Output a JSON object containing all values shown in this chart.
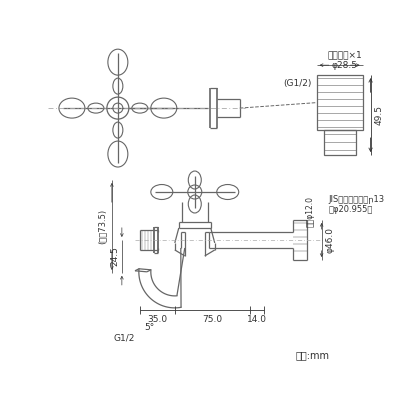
{
  "bg_color": "#ffffff",
  "line_color": "#666666",
  "dim_color": "#333333",
  "cl_color": "#aaaaaa",
  "annotations": {
    "nejiro": "ネジ口金×1",
    "phi285": "φ28.5",
    "g12_top": "(G1/2)",
    "dim_495": "49.5",
    "jis_label": "JIS給水栓取付ねր13",
    "jis_phi": "（φ20.955）",
    "phi46": "φ46.0",
    "naikei_phi12": "内径φ12.0",
    "dim_14": "14.0",
    "dim_75": "75.0",
    "dim_35": "35.0",
    "dim_245": "24.5",
    "dim_max735": "(最大73.5)",
    "g12_bottom": "G1/2",
    "angle_5": "5°",
    "unit": "単位:mm"
  },
  "fig_width": 4.0,
  "fig_height": 4.0,
  "dpi": 100
}
